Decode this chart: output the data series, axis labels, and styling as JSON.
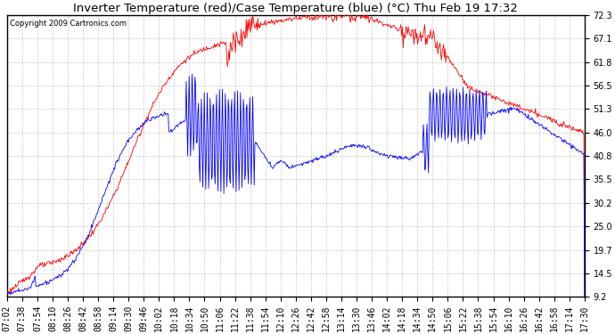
{
  "title": "Inverter Temperature (red)/Case Temperature (blue) (°C) Thu Feb 19 17:32",
  "copyright": "Copyright 2009 Cartronics.com",
  "yticks": [
    9.2,
    14.5,
    19.7,
    25.0,
    30.2,
    35.5,
    40.8,
    46.0,
    51.3,
    56.5,
    61.8,
    67.1,
    72.3
  ],
  "ymin": 9.2,
  "ymax": 72.3,
  "x_labels": [
    "07:02",
    "07:38",
    "07:54",
    "08:10",
    "08:26",
    "08:42",
    "08:58",
    "09:14",
    "09:30",
    "09:46",
    "10:02",
    "10:18",
    "10:34",
    "10:50",
    "11:06",
    "11:22",
    "11:38",
    "11:54",
    "12:10",
    "12:26",
    "12:42",
    "12:58",
    "13:14",
    "13:30",
    "13:46",
    "14:02",
    "14:18",
    "14:34",
    "14:50",
    "15:06",
    "15:22",
    "15:38",
    "15:54",
    "16:10",
    "16:26",
    "16:42",
    "16:58",
    "17:14",
    "17:30"
  ],
  "background_color": "#ffffff",
  "plot_bg_color": "#ffffff",
  "grid_color": "#c8c8c8",
  "red_color": "#ff0000",
  "blue_color": "#0000ff",
  "title_fontsize": 9.5,
  "tick_fontsize": 7,
  "copyright_fontsize": 6
}
